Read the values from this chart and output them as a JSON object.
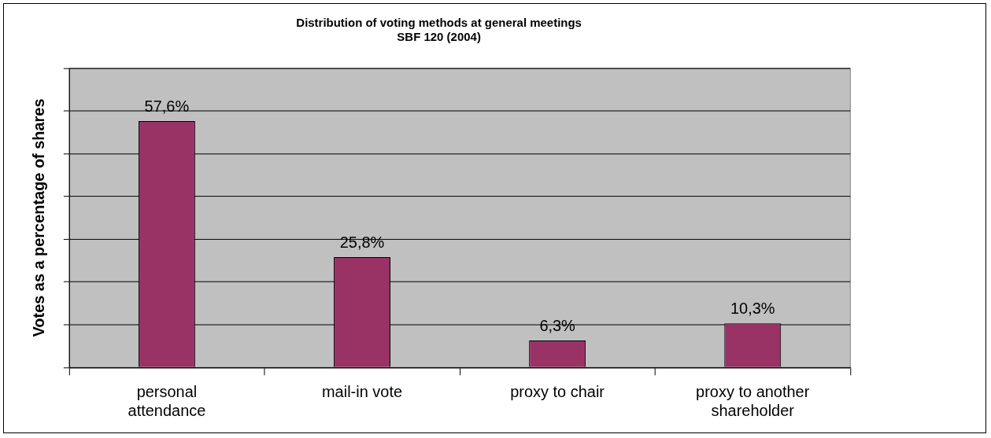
{
  "chart_data": {
    "type": "bar",
    "title": "Distribution of voting methods at general meetings\nSBF 120 (2004)",
    "ylabel": "Votes as a percentage of shares",
    "categories": [
      "personal attendance",
      "mail-in vote",
      "proxy to chair",
      "proxy to another shareholder"
    ],
    "values": [
      57.6,
      25.8,
      6.3,
      10.3
    ],
    "color": "#993366",
    "value_labels": [
      "57,6%",
      "25,8%",
      "6,3%",
      "10,3%"
    ],
    "ylim": [
      0,
      70
    ],
    "yticks": [
      {
        "value": 0,
        "label": null
      },
      {
        "value": 10,
        "label": null
      },
      {
        "value": 20,
        "label": null
      },
      {
        "value": 30,
        "label": null
      },
      {
        "value": 40,
        "label": null
      },
      {
        "value": 50,
        "label": null
      },
      {
        "value": 60,
        "label": null
      },
      {
        "value": 70,
        "label": null
      }
    ],
    "tick_labels": "x",
    "grid": "y",
    "legend": false
  }
}
